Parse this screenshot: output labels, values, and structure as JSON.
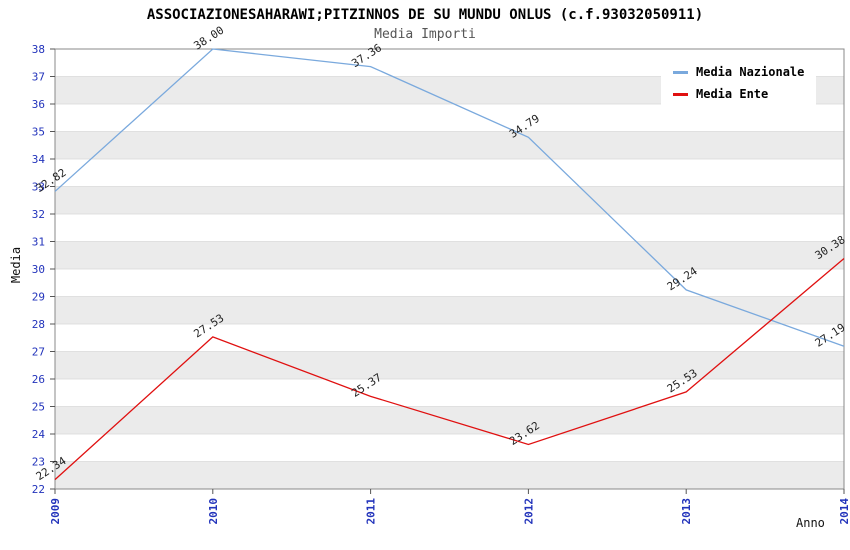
{
  "header": {
    "title": "ASSOCIAZIONESAHARAWI;PITZINNOS DE SU MUNDU ONLUS (c.f.93032050911)",
    "subtitle": "Media Importi"
  },
  "chart_data": {
    "type": "line",
    "x_categories": [
      "2009",
      "2010",
      "2011",
      "2012",
      "2013",
      "2014"
    ],
    "series": [
      {
        "name": "Media Nazionale",
        "color": "#7aa9dd",
        "values": [
          32.82,
          38.0,
          37.36,
          34.79,
          29.24,
          27.19
        ],
        "labels": [
          "32.82",
          "38.00",
          "37.36",
          "34.79",
          "29.24",
          "27.19"
        ]
      },
      {
        "name": "Media Ente",
        "color": "#e01010",
        "values": [
          22.34,
          27.53,
          25.37,
          23.62,
          25.53,
          30.38
        ],
        "labels": [
          "22.34",
          "27.53",
          "25.37",
          "23.62",
          "25.53",
          "30.38"
        ]
      }
    ],
    "xlabel": "Anno",
    "ylabel": "Media",
    "ylim": [
      22,
      38
    ],
    "ytick_step": 1,
    "legend_position": "top-right",
    "grid": "horizontal-bands"
  },
  "colors": {
    "tick_label": "#2233bb",
    "value_label": "#222222",
    "band": "#ebebeb",
    "grid": "#d9d9d9",
    "plot_border": "#888888",
    "axis_tick": "#555555"
  }
}
